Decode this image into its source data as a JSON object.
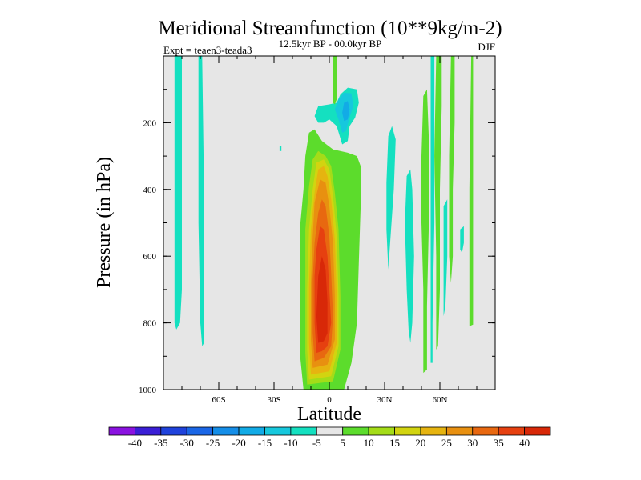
{
  "chart_data": {
    "type": "heatmap",
    "title": "Meridional Streamfunction (10**9kg/m-2)",
    "subtitle": "12.5kyr BP - 00.0kyr BP",
    "left_label": "Expt = teaen3-teada3",
    "right_label": "DJF",
    "xlabel": "Latitude",
    "ylabel": "Pressure (in hPa)",
    "xlim": [
      -90,
      90
    ],
    "ylim": [
      1000,
      0
    ],
    "x_ticks": [
      {
        "value": -60,
        "label": "60S"
      },
      {
        "value": -30,
        "label": "30S"
      },
      {
        "value": 0,
        "label": "0"
      },
      {
        "value": 30,
        "label": "30N"
      },
      {
        "value": 60,
        "label": "60N"
      }
    ],
    "y_ticks": [
      {
        "value": 200,
        "label": "200"
      },
      {
        "value": 400,
        "label": "400"
      },
      {
        "value": 600,
        "label": "600"
      },
      {
        "value": 800,
        "label": "800"
      },
      {
        "value": 1000,
        "label": "1000"
      }
    ],
    "colorbar": {
      "bounds": [
        -45,
        -40,
        -35,
        -30,
        -25,
        -20,
        -15,
        -10,
        -5,
        5,
        10,
        15,
        20,
        25,
        30,
        35,
        40,
        45
      ],
      "labels": [
        "-40",
        "-35",
        "-30",
        "-25",
        "-20",
        "-15",
        "-10",
        "-5",
        "5",
        "10",
        "15",
        "20",
        "25",
        "30",
        "35",
        "40"
      ],
      "colors": [
        "#8a12e0",
        "#3a1ed6",
        "#1f42dc",
        "#1a66e6",
        "#158ee8",
        "#12abe6",
        "#16c8dd",
        "#14e0c0",
        "#e6e6e6",
        "#5cdc2c",
        "#a4dc18",
        "#d2d410",
        "#e6b410",
        "#e89010",
        "#e86810",
        "#e64010",
        "#d82808"
      ]
    },
    "background_color": "#e6e6e6",
    "contour_regions": [
      {
        "name": "tropical-cell-5",
        "level": 5,
        "color": "#5cdc2c",
        "points": [
          [
            -14,
            1000
          ],
          [
            -16,
            890
          ],
          [
            -16,
            740
          ],
          [
            -16,
            520
          ],
          [
            -14,
            400
          ],
          [
            -13,
            300
          ],
          [
            -11,
            230
          ],
          [
            -8,
            220
          ],
          [
            -4,
            255
          ],
          [
            2,
            280
          ],
          [
            10,
            290
          ],
          [
            15,
            300
          ],
          [
            17,
            330
          ],
          [
            17,
            450
          ],
          [
            16,
            620
          ],
          [
            15,
            800
          ],
          [
            12,
            920
          ],
          [
            8,
            1000
          ]
        ]
      },
      {
        "name": "tropical-cell-10",
        "level": 10,
        "color": "#a4dc18",
        "points": [
          [
            -12,
            985
          ],
          [
            -13,
            890
          ],
          [
            -13,
            720
          ],
          [
            -13,
            520
          ],
          [
            -11,
            390
          ],
          [
            -9,
            310
          ],
          [
            -6,
            285
          ],
          [
            -2,
            300
          ],
          [
            1,
            330
          ],
          [
            3,
            410
          ],
          [
            5,
            520
          ],
          [
            6,
            720
          ],
          [
            6,
            880
          ],
          [
            2,
            975
          ]
        ]
      },
      {
        "name": "tropical-cell-15",
        "level": 15,
        "color": "#d2d410",
        "points": [
          [
            -11,
            970
          ],
          [
            -12,
            880
          ],
          [
            -12,
            700
          ],
          [
            -11,
            520
          ],
          [
            -9,
            400
          ],
          [
            -7,
            320
          ],
          [
            -3,
            310
          ],
          [
            0,
            340
          ],
          [
            2,
            420
          ],
          [
            4,
            540
          ],
          [
            5,
            720
          ],
          [
            5,
            870
          ],
          [
            1,
            960
          ]
        ]
      },
      {
        "name": "tropical-cell-20",
        "level": 20,
        "color": "#e6b410",
        "points": [
          [
            -10,
            955
          ],
          [
            -11,
            860
          ],
          [
            -11,
            690
          ],
          [
            -10,
            520
          ],
          [
            -8,
            410
          ],
          [
            -6,
            340
          ],
          [
            -3,
            330
          ],
          [
            -1,
            360
          ],
          [
            1,
            430
          ],
          [
            3,
            550
          ],
          [
            4,
            720
          ],
          [
            4,
            860
          ],
          [
            0,
            945
          ]
        ]
      },
      {
        "name": "tropical-cell-25",
        "level": 25,
        "color": "#e89010",
        "points": [
          [
            -9,
            935
          ],
          [
            -10,
            850
          ],
          [
            -10,
            680
          ],
          [
            -9,
            540
          ],
          [
            -8,
            440
          ],
          [
            -5,
            370
          ],
          [
            -2,
            380
          ],
          [
            0,
            450
          ],
          [
            2,
            560
          ],
          [
            3,
            720
          ],
          [
            3,
            850
          ],
          [
            -1,
            925
          ]
        ]
      },
      {
        "name": "tropical-cell-30",
        "level": 30,
        "color": "#e86810",
        "points": [
          [
            -8,
            915
          ],
          [
            -9,
            830
          ],
          [
            -9,
            670
          ],
          [
            -8,
            560
          ],
          [
            -6,
            470
          ],
          [
            -4,
            430
          ],
          [
            -2,
            450
          ],
          [
            0,
            540
          ],
          [
            1,
            650
          ],
          [
            2,
            780
          ],
          [
            1,
            870
          ],
          [
            -3,
            905
          ]
        ]
      },
      {
        "name": "tropical-cell-35",
        "level": 35,
        "color": "#e64010",
        "points": [
          [
            -7,
            890
          ],
          [
            -8,
            800
          ],
          [
            -8,
            660
          ],
          [
            -7,
            580
          ],
          [
            -5,
            510
          ],
          [
            -3,
            520
          ],
          [
            -1,
            600
          ],
          [
            0,
            700
          ],
          [
            1,
            800
          ],
          [
            -1,
            870
          ],
          [
            -4,
            885
          ]
        ]
      },
      {
        "name": "tropical-cell-40",
        "level": 40,
        "color": "#d82808",
        "points": [
          [
            -6,
            860
          ],
          [
            -7,
            780
          ],
          [
            -6,
            660
          ],
          [
            -4,
            600
          ],
          [
            -2,
            640
          ],
          [
            -1,
            740
          ],
          [
            -1,
            830
          ],
          [
            -3,
            855
          ]
        ]
      },
      {
        "name": "upper-cell-neg5",
        "level": -5,
        "color": "#14e0c0",
        "points": [
          [
            -6,
            200
          ],
          [
            -8,
            180
          ],
          [
            -6,
            150
          ],
          [
            0,
            145
          ],
          [
            4,
            140
          ],
          [
            6,
            115
          ],
          [
            10,
            95
          ],
          [
            15,
            100
          ],
          [
            16,
            140
          ],
          [
            14,
            185
          ],
          [
            11,
            210
          ],
          [
            10,
            255
          ],
          [
            7,
            265
          ],
          [
            4,
            210
          ],
          [
            0,
            190
          ],
          [
            -3,
            200
          ]
        ]
      },
      {
        "name": "upper-cell-neg10",
        "level": -10,
        "color": "#16c8dd",
        "points": [
          [
            3,
            160
          ],
          [
            5,
            130
          ],
          [
            8,
            110
          ],
          [
            12,
            112
          ],
          [
            13,
            150
          ],
          [
            11,
            185
          ],
          [
            9,
            225
          ],
          [
            7,
            230
          ],
          [
            5,
            190
          ]
        ]
      },
      {
        "name": "upper-cell-neg15",
        "level": -15,
        "color": "#12abe6",
        "points": [
          [
            7,
            170
          ],
          [
            8,
            140
          ],
          [
            10,
            135
          ],
          [
            11,
            160
          ],
          [
            10,
            190
          ],
          [
            8,
            195
          ]
        ]
      },
      {
        "name": "south-polar-strip-a",
        "level": -5,
        "color": "#14e0c0",
        "points": [
          [
            -84,
            0
          ],
          [
            -80,
            0
          ],
          [
            -80,
            340
          ],
          [
            -80,
            700
          ],
          [
            -81,
            800
          ],
          [
            -83,
            820
          ],
          [
            -84,
            800
          ],
          [
            -84,
            600
          ],
          [
            -84,
            300
          ]
        ]
      },
      {
        "name": "south-polar-strip-b",
        "level": -5,
        "color": "#14e0c0",
        "points": [
          [
            -71,
            0
          ],
          [
            -69,
            0
          ],
          [
            -68,
            400
          ],
          [
            -68,
            700
          ],
          [
            -68,
            860
          ],
          [
            -69,
            870
          ],
          [
            -70,
            800
          ],
          [
            -71,
            500
          ]
        ]
      },
      {
        "name": "south-sliver",
        "level": -5,
        "color": "#14e0c0",
        "points": [
          [
            -27,
            270
          ],
          [
            -26,
            270
          ],
          [
            -26,
            285
          ],
          [
            -27,
            285
          ]
        ]
      },
      {
        "name": "northern-strip-30n",
        "level": -5,
        "color": "#14e0c0",
        "points": [
          [
            32,
            240
          ],
          [
            34,
            210
          ],
          [
            36,
            250
          ],
          [
            35,
            400
          ],
          [
            33,
            560
          ],
          [
            32,
            640
          ],
          [
            31,
            520
          ],
          [
            31,
            380
          ]
        ]
      },
      {
        "name": "northern-strip-42n",
        "level": -5,
        "color": "#14e0c0",
        "points": [
          [
            42,
            360
          ],
          [
            44,
            340
          ],
          [
            45,
            400
          ],
          [
            46,
            600
          ],
          [
            45,
            800
          ],
          [
            44,
            860
          ],
          [
            43,
            820
          ],
          [
            42,
            700
          ],
          [
            41,
            500
          ]
        ]
      },
      {
        "name": "northern-strip-50n",
        "level": 5,
        "color": "#5cdc2c",
        "points": [
          [
            51,
            120
          ],
          [
            53,
            100
          ],
          [
            54,
            250
          ],
          [
            54,
            500
          ],
          [
            53,
            750
          ],
          [
            53,
            940
          ],
          [
            51,
            950
          ],
          [
            51,
            700
          ],
          [
            50,
            500
          ],
          [
            50,
            300
          ]
        ]
      },
      {
        "name": "northern-strip-55n",
        "level": -5,
        "color": "#14e0c0",
        "points": [
          [
            55,
            0
          ],
          [
            57,
            0
          ],
          [
            57,
            200
          ],
          [
            57,
            500
          ],
          [
            56,
            800
          ],
          [
            56,
            920
          ],
          [
            55,
            920
          ],
          [
            55,
            600
          ]
        ]
      },
      {
        "name": "northern-strip-59n",
        "level": 5,
        "color": "#5cdc2c",
        "points": [
          [
            58,
            0
          ],
          [
            61,
            0
          ],
          [
            61,
            150
          ],
          [
            60,
            400
          ],
          [
            60,
            700
          ],
          [
            59,
            870
          ],
          [
            58,
            880
          ],
          [
            58,
            600
          ],
          [
            57,
            300
          ]
        ]
      },
      {
        "name": "northern-strip-63n",
        "level": -5,
        "color": "#14e0c0",
        "points": [
          [
            62,
            450
          ],
          [
            64,
            430
          ],
          [
            64,
            600
          ],
          [
            63,
            750
          ],
          [
            62,
            780
          ],
          [
            62,
            600
          ]
        ]
      },
      {
        "name": "northern-strip-66n",
        "level": 5,
        "color": "#5cdc2c",
        "points": [
          [
            66,
            0
          ],
          [
            68,
            0
          ],
          [
            68,
            200
          ],
          [
            67,
            400
          ],
          [
            67,
            600
          ],
          [
            66,
            680
          ],
          [
            65,
            600
          ],
          [
            65,
            300
          ]
        ]
      },
      {
        "name": "northern-strip-72n",
        "level": -5,
        "color": "#14e0c0",
        "points": [
          [
            71,
            520
          ],
          [
            73,
            510
          ],
          [
            73,
            560
          ],
          [
            72,
            590
          ],
          [
            71,
            580
          ]
        ]
      },
      {
        "name": "northern-strip-78n",
        "level": 5,
        "color": "#5cdc2c",
        "points": [
          [
            77,
            0
          ],
          [
            78,
            0
          ],
          [
            78,
            300
          ],
          [
            78,
            600
          ],
          [
            78,
            805
          ],
          [
            76,
            810
          ],
          [
            76,
            700
          ],
          [
            76,
            400
          ]
        ]
      },
      {
        "name": "equator-top-strip",
        "level": 5,
        "color": "#5cdc2c",
        "points": [
          [
            2,
            0
          ],
          [
            4,
            0
          ],
          [
            4,
            130
          ],
          [
            3,
            145
          ],
          [
            2,
            140
          ]
        ]
      }
    ]
  }
}
